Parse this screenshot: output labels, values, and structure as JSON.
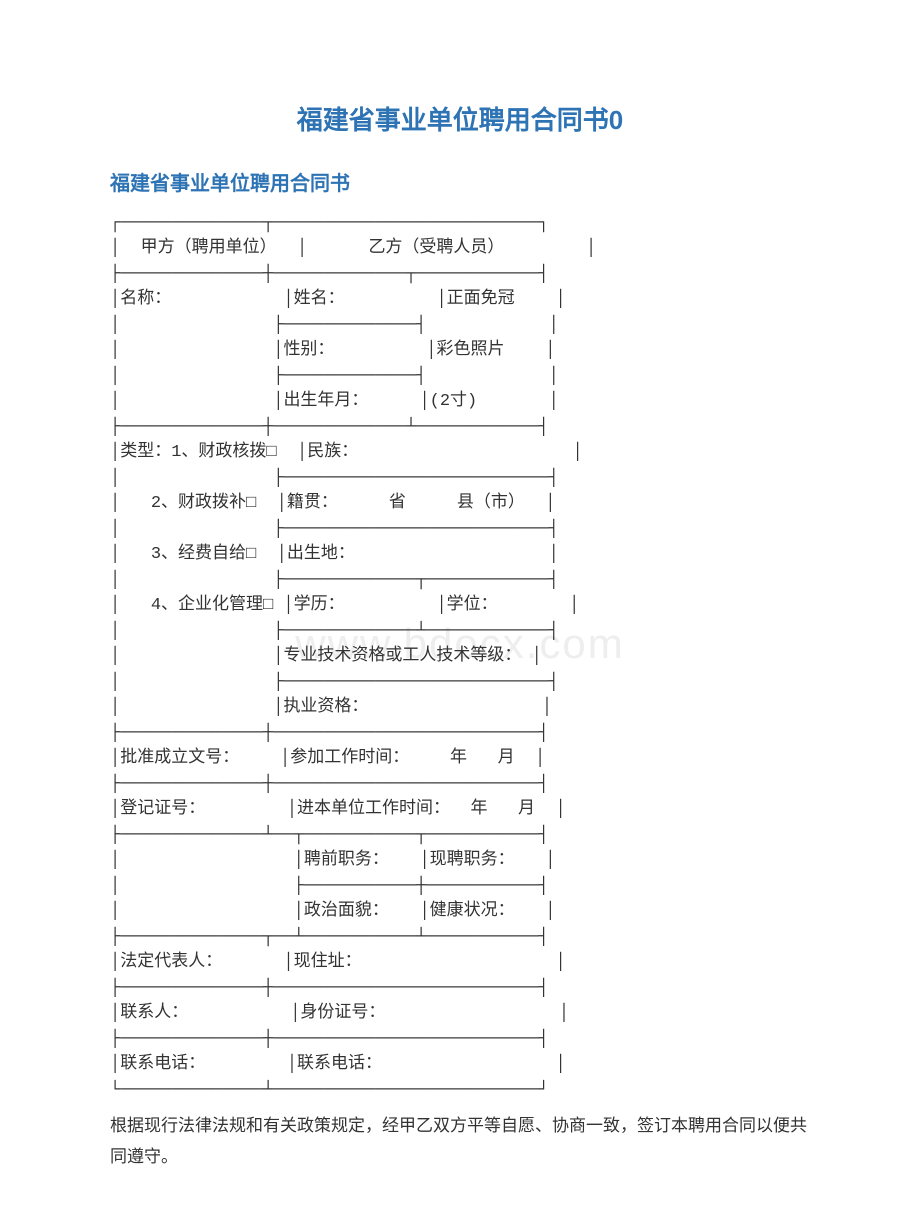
{
  "title_main": "福建省事业单位聘用合同书0",
  "title_sub": "福建省事业单位聘用合同书",
  "watermark": "www.bdocx.com",
  "colors": {
    "title": "#2e74b5",
    "text": "#333333",
    "background": "#ffffff",
    "watermark": "#eeeeee"
  },
  "typography": {
    "title_main_fontsize": 26,
    "title_sub_fontsize": 20,
    "body_fontsize": 17
  },
  "structure_type": "form-table",
  "header": {
    "party_a": "甲方（聘用单位）",
    "party_b": "乙方（受聘人员）"
  },
  "party_a_fields": {
    "name_label": "名称：",
    "type_label": "类型：",
    "type1": "1、财政核拨□",
    "type2": "2、财政拨补□",
    "type3": "3、经费自给□",
    "type4": "4、企业化管理□",
    "approval_doc": "批准成立文号：",
    "reg_number": "登记证号：",
    "legal_rep": "法定代表人：",
    "contact_person": "联系人：",
    "contact_phone": "联系电话："
  },
  "party_b_fields": {
    "name": "姓名：",
    "gender": "性别：",
    "birth_ym": "出生年月：",
    "photo1": "正面免冠",
    "photo2": "彩色照片",
    "photo3": "(2寸)",
    "ethnicity": "民族：",
    "native_place": "籍贯：",
    "province": "省",
    "county": "县（市）",
    "birth_place": "出生地：",
    "education": "学历：",
    "degree": "学位：",
    "pro_qual": "专业技术资格或工人技术等级：",
    "practice_qual": "执业资格：",
    "work_start": "参加工作时间：",
    "year": "年",
    "month": "月",
    "unit_start": "进本单位工作时间：",
    "prev_position": "聘前职务：",
    "curr_position": "现聘职务：",
    "political": "政治面貌：",
    "health": "健康状况：",
    "address": "现住址：",
    "id_number": "身份证号：",
    "contact_phone": "联系电话："
  },
  "body_text": "根据现行法律法规和有关政策规定，经甲乙双方平等自愿、协商一致，签订本聘用合同以便共同遵守。",
  "border_chars": {
    "top_left": "┌",
    "top_right": "┐",
    "bottom_left": "└",
    "bottom_right": "┘",
    "horizontal": "─",
    "vertical": "│",
    "t_down": "┬",
    "t_up": "┴",
    "t_right": "├",
    "t_left": "┤",
    "cross": "┼"
  }
}
